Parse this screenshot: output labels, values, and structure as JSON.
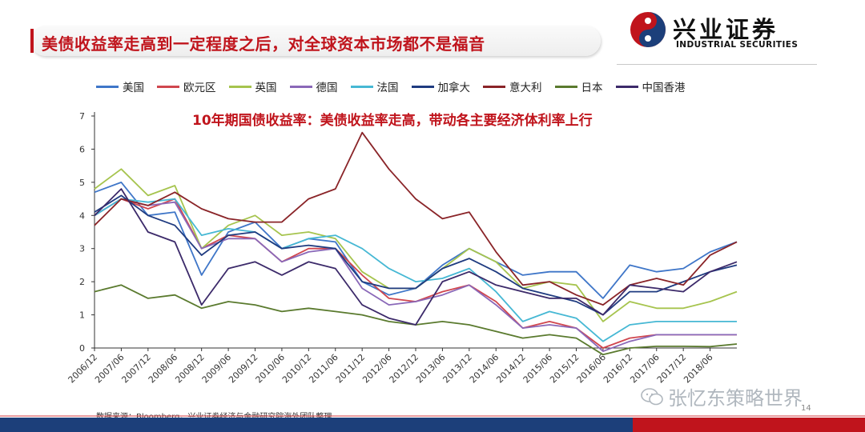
{
  "header": {
    "title": "美债收益率走高到一定程度之后，对全球资本市场都不是福音",
    "logo_cn": "兴业证券",
    "logo_en": "INDUSTRIAL SECURITIES"
  },
  "footer": {
    "source": "数据来源：Bloomberg，兴业证券经济与金融研究院海外团队整理",
    "page_number": "14",
    "watermark": "张忆东策略世界"
  },
  "chart_data": {
    "type": "line",
    "title": "10年期国债收益率：美债收益率走高，带动各主要经济体利率上行",
    "xlabel": "",
    "ylabel": "",
    "ylim": [
      0,
      7
    ],
    "yticks": [
      0,
      1,
      2,
      3,
      4,
      5,
      6,
      7
    ],
    "grid": false,
    "legend_position": "top",
    "x_ticks": [
      "2006/12",
      "2007/06",
      "2007/12",
      "2008/06",
      "2008/12",
      "2009/06",
      "2009/12",
      "2010/06",
      "2010/12",
      "2011/06",
      "2011/12",
      "2012/06",
      "2012/12",
      "2013/06",
      "2013/12",
      "2014/06",
      "2014/12",
      "2015/06",
      "2015/12",
      "2016/06",
      "2016/12",
      "2017/06",
      "2017/12",
      "2018/06"
    ],
    "x": [
      "2006/12",
      "2007/06",
      "2007/12",
      "2008/06",
      "2008/12",
      "2009/06",
      "2009/12",
      "2010/06",
      "2010/12",
      "2011/06",
      "2011/12",
      "2012/06",
      "2012/12",
      "2013/06",
      "2013/12",
      "2014/06",
      "2014/12",
      "2015/06",
      "2015/12",
      "2016/06",
      "2016/12",
      "2017/06",
      "2017/12",
      "2018/06",
      "2018/11"
    ],
    "series": [
      {
        "name": "美国",
        "color": "#3f76c8",
        "values": [
          4.7,
          5.0,
          4.0,
          4.1,
          2.2,
          3.5,
          3.8,
          3.0,
          3.3,
          3.2,
          2.0,
          1.6,
          1.8,
          2.5,
          3.0,
          2.6,
          2.2,
          2.3,
          2.3,
          1.5,
          2.5,
          2.3,
          2.4,
          2.9,
          3.2
        ]
      },
      {
        "name": "欧元区",
        "color": "#d0464e",
        "values": [
          4.0,
          4.5,
          4.2,
          4.5,
          3.0,
          3.4,
          3.3,
          2.6,
          3.0,
          3.0,
          2.2,
          1.5,
          1.4,
          1.7,
          1.9,
          1.4,
          0.6,
          0.8,
          0.6,
          0.0,
          0.3,
          0.4,
          0.4,
          0.4,
          0.4
        ]
      },
      {
        "name": "英国",
        "color": "#a6c44e",
        "values": [
          4.8,
          5.4,
          4.6,
          4.9,
          3.0,
          3.7,
          4.0,
          3.4,
          3.5,
          3.3,
          2.3,
          1.8,
          1.8,
          2.4,
          3.0,
          2.6,
          1.8,
          2.0,
          1.9,
          0.8,
          1.4,
          1.2,
          1.2,
          1.4,
          1.7
        ]
      },
      {
        "name": "德国",
        "color": "#8a68b8",
        "values": [
          4.0,
          4.5,
          4.3,
          4.4,
          3.0,
          3.3,
          3.3,
          2.6,
          2.9,
          3.0,
          1.8,
          1.3,
          1.4,
          1.6,
          1.9,
          1.3,
          0.6,
          0.7,
          0.6,
          -0.1,
          0.2,
          0.4,
          0.4,
          0.4,
          0.4
        ]
      },
      {
        "name": "法国",
        "color": "#46b8d4",
        "values": [
          4.0,
          4.5,
          4.4,
          4.5,
          3.4,
          3.6,
          3.5,
          3.0,
          3.3,
          3.4,
          3.0,
          2.4,
          2.0,
          2.1,
          2.4,
          1.7,
          0.8,
          1.1,
          0.9,
          0.2,
          0.7,
          0.8,
          0.8,
          0.8,
          0.8
        ]
      },
      {
        "name": "加拿大",
        "color": "#1f3b80",
        "values": [
          4.1,
          4.6,
          4.0,
          3.7,
          2.8,
          3.4,
          3.5,
          3.0,
          3.1,
          3.0,
          2.0,
          1.8,
          1.8,
          2.4,
          2.7,
          2.3,
          1.8,
          1.6,
          1.4,
          1.0,
          1.7,
          1.7,
          2.0,
          2.3,
          2.5
        ]
      },
      {
        "name": "意大利",
        "color": "#8a2428",
        "values": [
          3.7,
          4.5,
          4.3,
          4.7,
          4.2,
          3.9,
          3.8,
          3.8,
          4.5,
          4.8,
          6.5,
          5.4,
          4.5,
          3.9,
          4.1,
          2.9,
          1.9,
          2.0,
          1.6,
          1.3,
          1.9,
          2.1,
          1.9,
          2.8,
          3.2
        ]
      },
      {
        "name": "日本",
        "color": "#5a7a2e",
        "values": [
          1.7,
          1.9,
          1.5,
          1.6,
          1.2,
          1.4,
          1.3,
          1.1,
          1.2,
          1.1,
          1.0,
          0.8,
          0.7,
          0.8,
          0.7,
          0.5,
          0.3,
          0.4,
          0.3,
          -0.2,
          0.0,
          0.05,
          0.05,
          0.04,
          0.12
        ]
      },
      {
        "name": "中国香港",
        "color": "#3c2a6a",
        "values": [
          4.0,
          4.8,
          3.5,
          3.2,
          1.3,
          2.4,
          2.6,
          2.2,
          2.6,
          2.4,
          1.3,
          0.9,
          0.7,
          2.0,
          2.3,
          1.9,
          1.7,
          1.5,
          1.5,
          1.0,
          1.9,
          1.8,
          1.7,
          2.3,
          2.6
        ]
      }
    ]
  }
}
